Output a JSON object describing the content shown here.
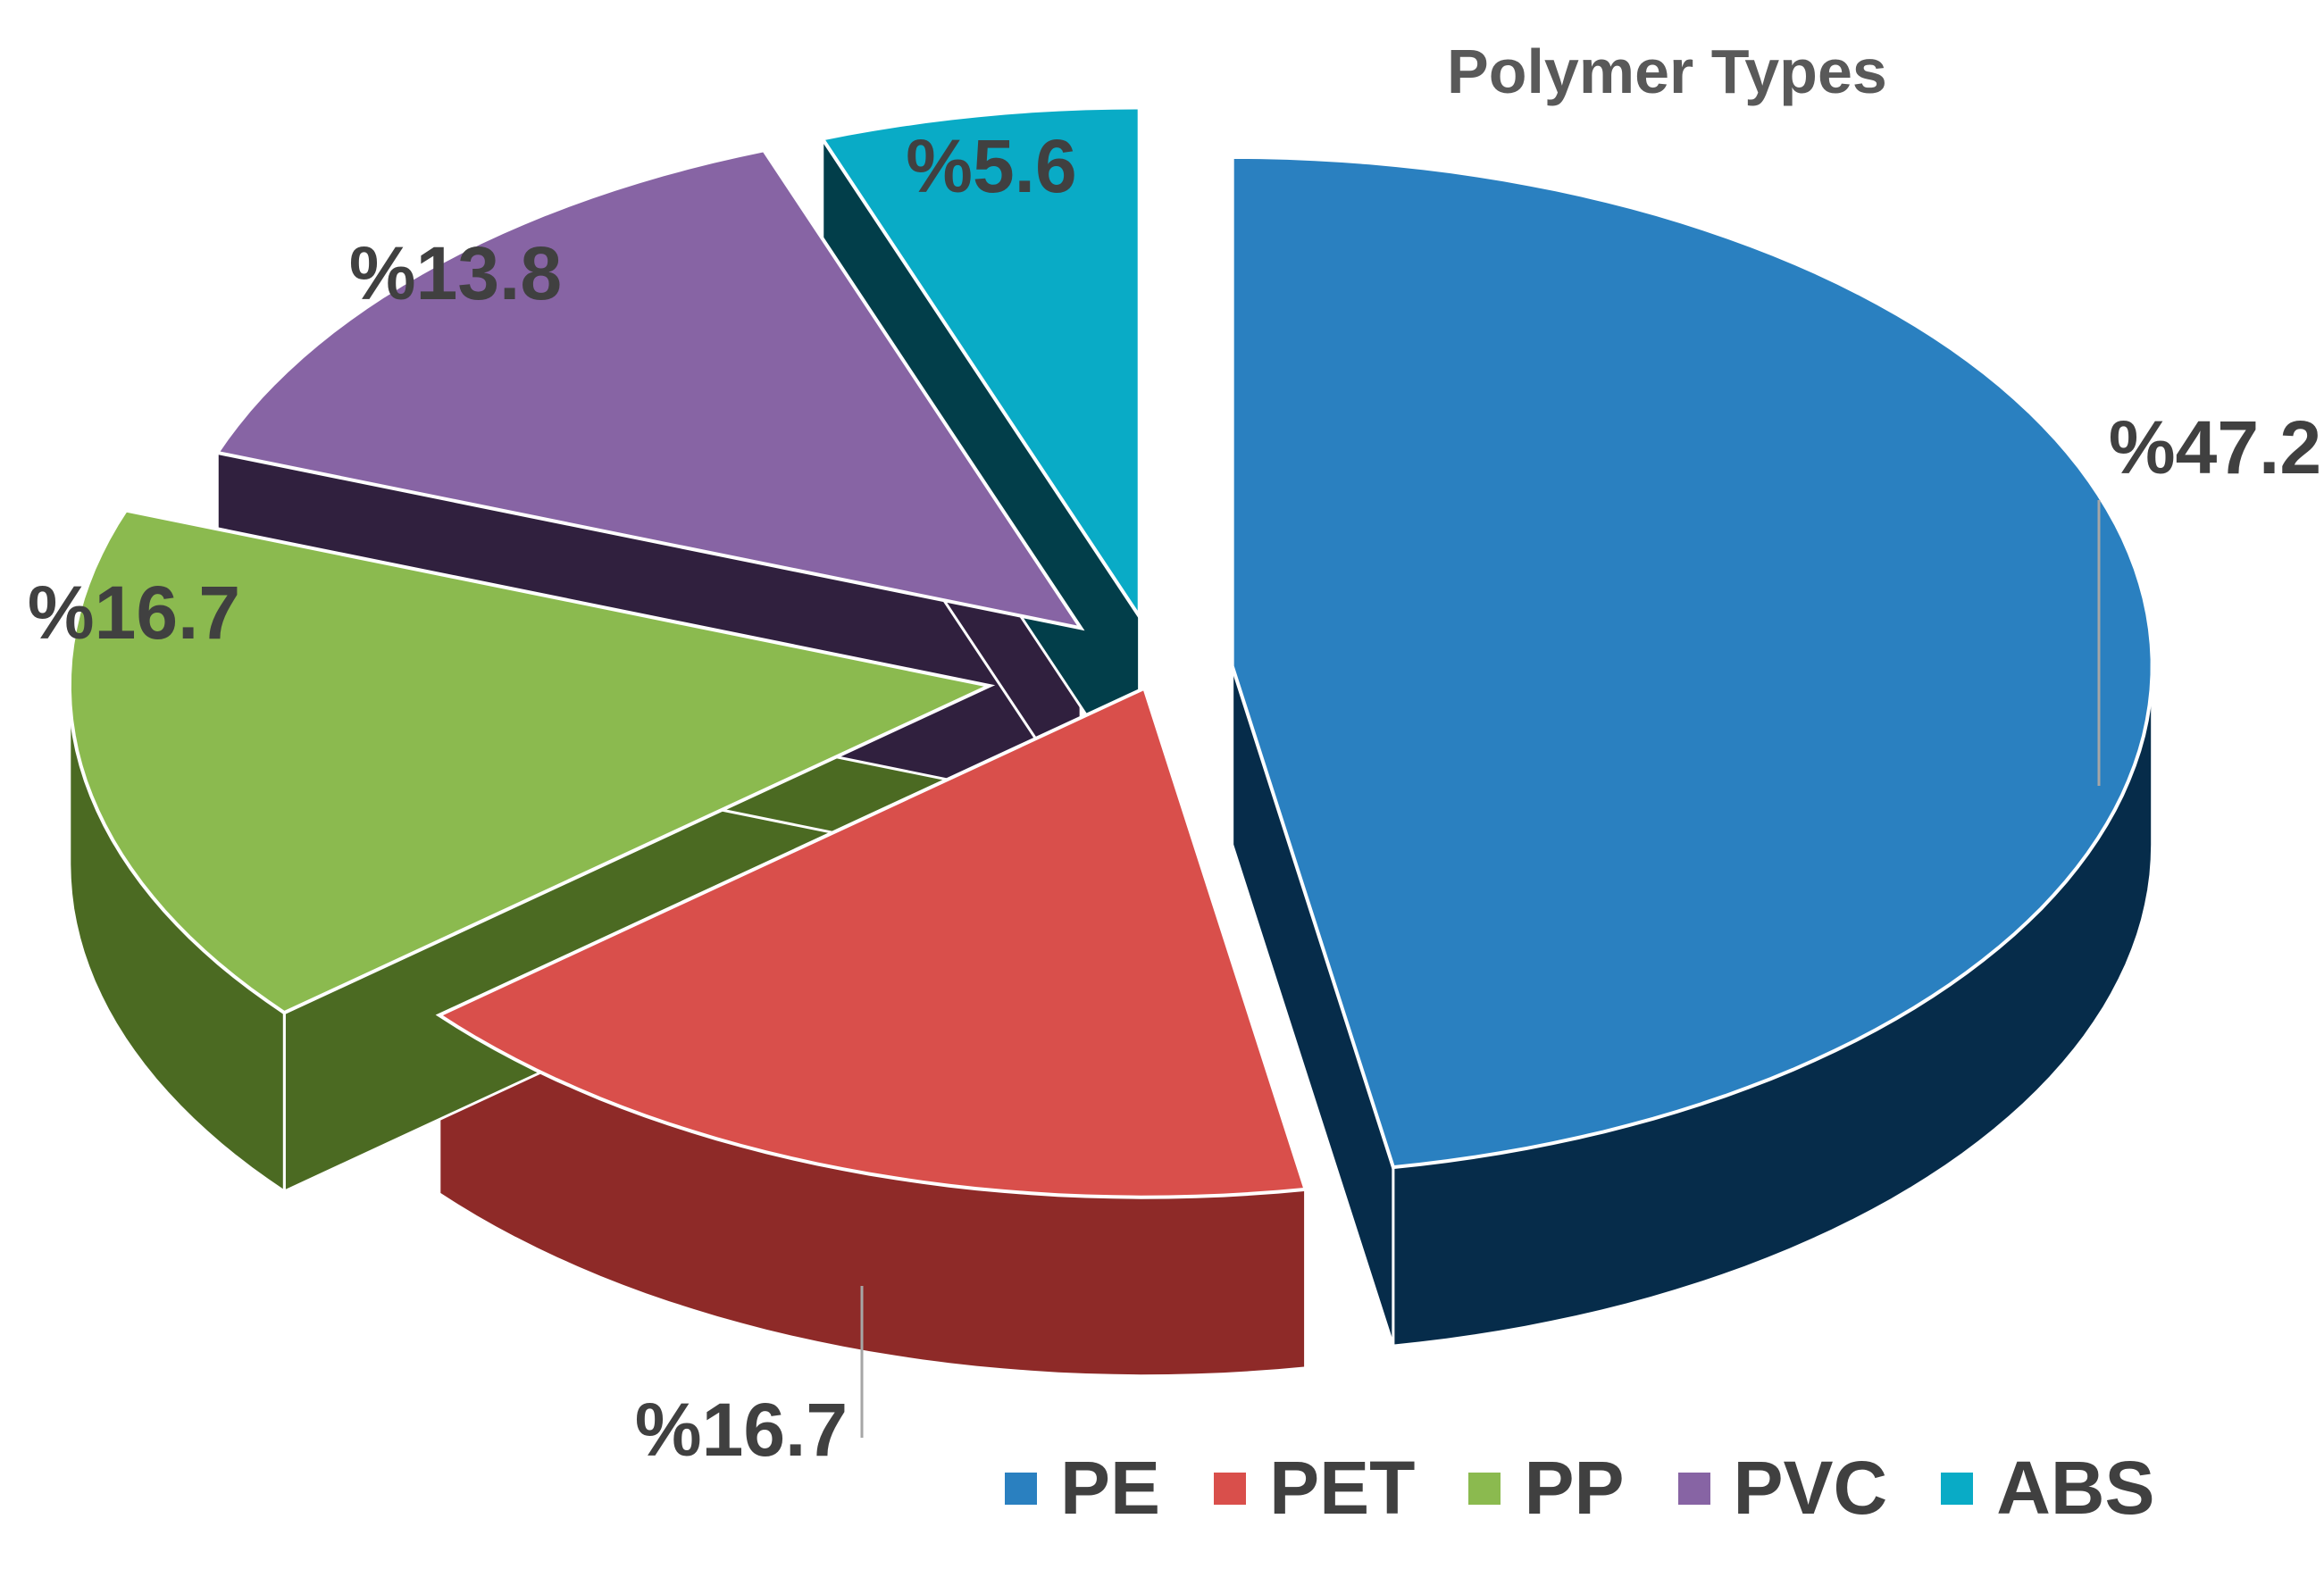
{
  "chart_data": {
    "type": "pie",
    "title": "Polymer Types",
    "categories": [
      "PE",
      "PET",
      "PP",
      "PVC",
      "ABS"
    ],
    "values": [
      47.2,
      16.7,
      16.7,
      13.8,
      5.6
    ],
    "labels": [
      "%47.2",
      "%16.7",
      "%16.7",
      "%13.8",
      "%5.6"
    ],
    "colors": [
      "#2A80C0",
      "#D94F4B",
      "#8BBA4F",
      "#8764A4",
      "#09ABC6"
    ],
    "side_colors": [
      "#062C4A",
      "#8E2A28",
      "#4B6A22",
      "#30203E",
      "#023E4A"
    ],
    "legend_position": "bottom-right",
    "exploded": true,
    "three_d": true
  }
}
